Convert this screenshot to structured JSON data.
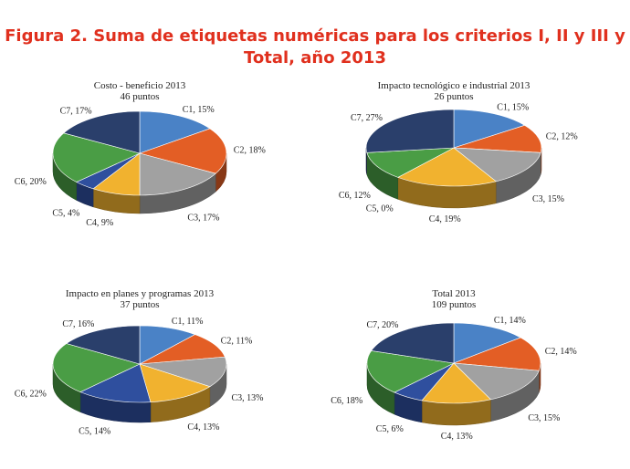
{
  "figure": {
    "title_line1": "Figura 2. Suma de etiquetas numéricas para los criterios I, II y III y",
    "title_line2": "Total, año 2013"
  },
  "colors": {
    "C1": "#4a82c6",
    "C2": "#e35e25",
    "C3": "#a1a1a1",
    "C4": "#f1b22f",
    "C5": "#2f4f9e",
    "C6": "#4a9d45",
    "C7": "#2a3f6b",
    "title": "#e0301e"
  },
  "chart_data": [
    {
      "type": "pie",
      "title": "Costo - beneficio 2013",
      "subtitle": "46 puntos",
      "categories": [
        "C1",
        "C2",
        "C3",
        "C4",
        "C5",
        "C6",
        "C7"
      ],
      "values": [
        15,
        18,
        17,
        9,
        4,
        20,
        17
      ],
      "labels": [
        "C1, 15%",
        "C2, 18%",
        "C3, 17%",
        "C4, 9%",
        "C5, 4%",
        "C6, 20%",
        "C7, 17%"
      ]
    },
    {
      "type": "pie",
      "title": "Impacto tecnológico e industrial 2013",
      "subtitle": "26 puntos",
      "categories": [
        "C1",
        "C2",
        "C3",
        "C4",
        "C5",
        "C6",
        "C7"
      ],
      "values": [
        15,
        12,
        15,
        19,
        0,
        12,
        27
      ],
      "labels": [
        "C1, 15%",
        "C2, 12%",
        "C3, 15%",
        "C4, 19%",
        "C5, 0%",
        "C6, 12%",
        "C7, 27%"
      ]
    },
    {
      "type": "pie",
      "title": "Impacto en planes y programas 2013",
      "subtitle": "37 puntos",
      "categories": [
        "C1",
        "C2",
        "C3",
        "C4",
        "C5",
        "C6",
        "C7"
      ],
      "values": [
        11,
        11,
        13,
        13,
        14,
        22,
        16
      ],
      "labels": [
        "C1, 11%",
        "C2, 11%",
        "C3, 13%",
        "C4, 13%",
        "C5, 14%",
        "C6, 22%",
        "C7, 16%"
      ]
    },
    {
      "type": "pie",
      "title": "Total 2013",
      "subtitle": "109 puntos",
      "categories": [
        "C1",
        "C2",
        "C3",
        "C4",
        "C5",
        "C6",
        "C7"
      ],
      "values": [
        14,
        14,
        15,
        13,
        6,
        18,
        20
      ],
      "labels": [
        "C1, 14%",
        "C2, 14%",
        "C3, 15%",
        "C4, 13%",
        "C5, 6%",
        "C6, 18%",
        "C7, 20%"
      ]
    }
  ]
}
